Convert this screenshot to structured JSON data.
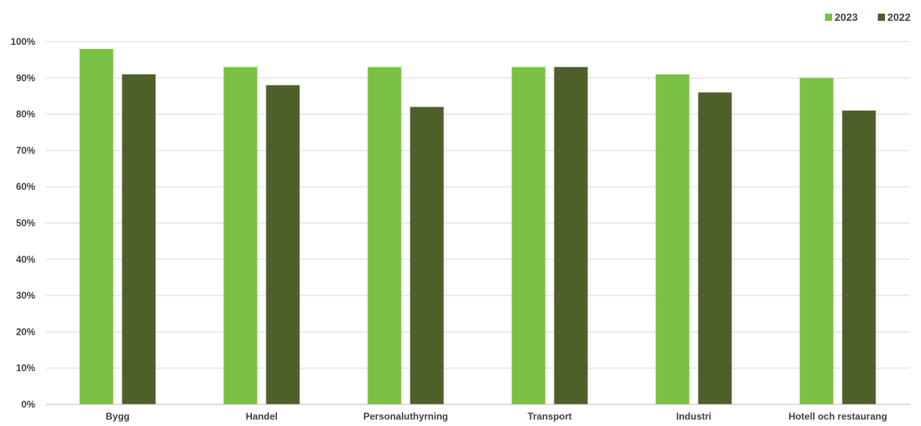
{
  "chart_data": {
    "type": "bar",
    "categories": [
      "Bygg",
      "Handel",
      "Personaluthyrning",
      "Transport",
      "Industri",
      "Hotell och restaurang"
    ],
    "series": [
      {
        "name": "2023",
        "values": [
          98,
          93,
          93,
          93,
          91,
          90
        ],
        "color": "#7ac143"
      },
      {
        "name": "2022",
        "values": [
          91,
          88,
          82,
          93,
          86,
          81
        ],
        "color": "#4e5f2a"
      }
    ],
    "ylim": [
      0,
      100
    ],
    "ytick_step": 10,
    "ytick_labels": [
      "0%",
      "10%",
      "20%",
      "30%",
      "40%",
      "50%",
      "60%",
      "70%",
      "80%",
      "90%",
      "100%"
    ],
    "grid": true,
    "legend": "top-right"
  }
}
